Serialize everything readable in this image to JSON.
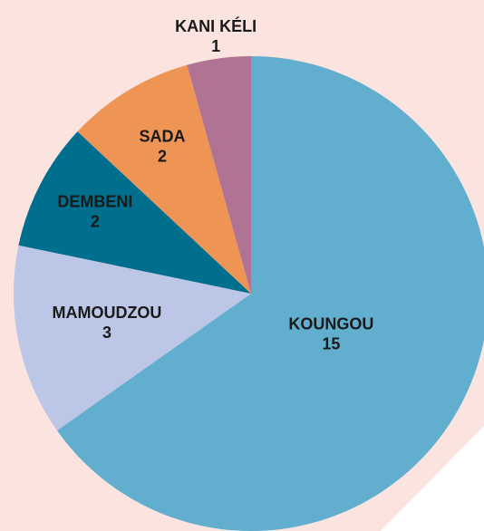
{
  "chart_data": {
    "type": "pie",
    "categories": [
      "KOUNGOU",
      "MAMOUDZOU",
      "DEMBENI",
      "SADA",
      "KANI KÉLI"
    ],
    "values": [
      15,
      3,
      2,
      2,
      1
    ],
    "colors": [
      "#62aecf",
      "#bcc6e6",
      "#006f8e",
      "#ee9455",
      "#b07394"
    ]
  }
}
